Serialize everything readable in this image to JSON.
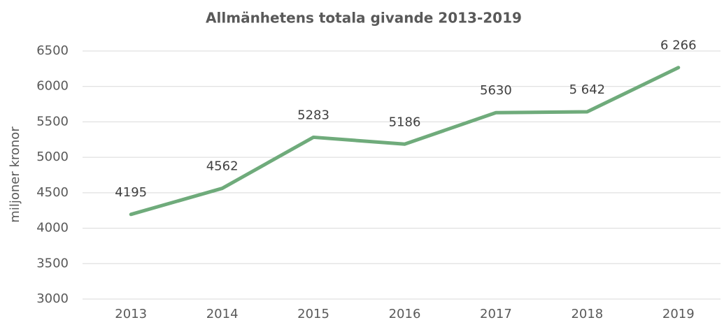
{
  "chart_data": {
    "type": "line",
    "title": "Allmänhetens totala givande 2013-2019",
    "y_label": "miljoner kronor",
    "categories": [
      "2013",
      "2014",
      "2015",
      "2016",
      "2017",
      "2018",
      "2019"
    ],
    "values": [
      4195,
      4562,
      5283,
      5186,
      5630,
      5642,
      6266
    ],
    "value_labels": [
      "4195",
      "4562",
      "5283",
      "5186",
      "5630",
      "5 642",
      "6 266"
    ],
    "color": "#6fab7b",
    "ylim": [
      3000,
      6500
    ],
    "yticks": [
      3000,
      3500,
      4000,
      4500,
      5000,
      5500,
      6000,
      6500
    ],
    "grid": true
  }
}
